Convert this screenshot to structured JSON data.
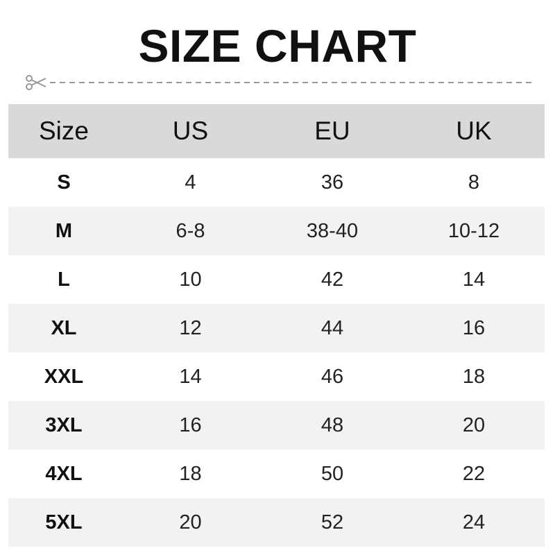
{
  "title": "SIZE CHART",
  "icons": {
    "cut_line": "scissors-icon"
  },
  "colors": {
    "header_bg": "#d9d9d9",
    "alt_row_bg": "#f2f2f2"
  },
  "table": {
    "headers": [
      "Size",
      "US",
      "EU",
      "UK"
    ],
    "rows": [
      [
        "S",
        "4",
        "36",
        "8"
      ],
      [
        "M",
        "6-8",
        "38-40",
        "10-12"
      ],
      [
        "L",
        "10",
        "42",
        "14"
      ],
      [
        "XL",
        "12",
        "44",
        "16"
      ],
      [
        "XXL",
        "14",
        "46",
        "18"
      ],
      [
        "3XL",
        "16",
        "48",
        "20"
      ],
      [
        "4XL",
        "18",
        "50",
        "22"
      ],
      [
        "5XL",
        "20",
        "52",
        "24"
      ]
    ]
  }
}
